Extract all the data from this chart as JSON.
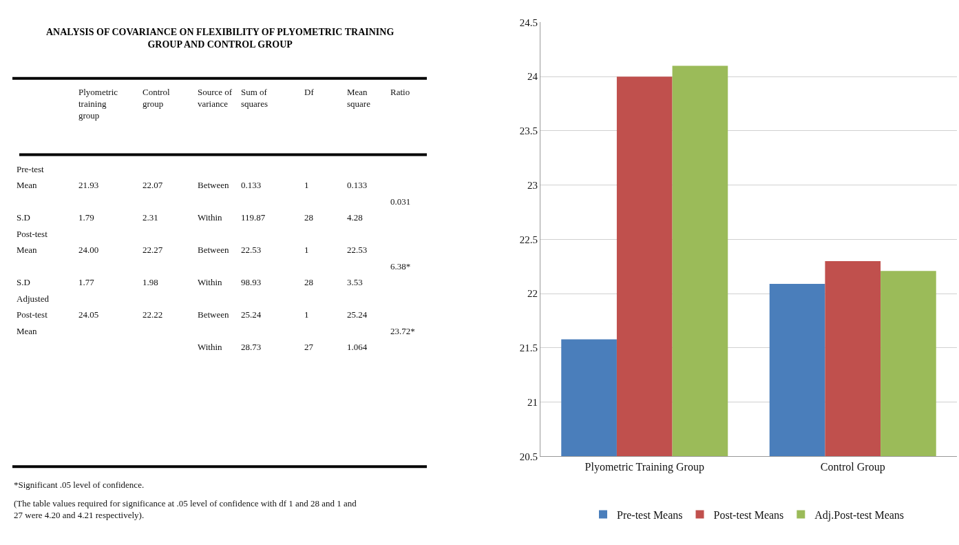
{
  "chart_data": [
    {
      "type": "other",
      "title": "ANALYSIS OF COVARIANCE ON FLEXIBILITY OF PLYOMETRIC TRAINING GROUP AND CONTROL GROUP",
      "categories": [
        null,
        "Plyometric training group",
        "Control group",
        "Source of variance",
        "Sum of squares",
        "Df",
        "Mean square",
        "Ratio"
      ],
      "cell_labels": [
        [
          "Pre-test",
          null,
          null,
          null,
          null,
          null,
          null,
          null
        ],
        [
          "Mean",
          "21.93",
          "22.07",
          "Between",
          "0.133",
          "1",
          "0.133",
          null
        ],
        [
          null,
          null,
          null,
          null,
          null,
          null,
          null,
          "0.031"
        ],
        [
          "S.D",
          "1.79",
          "2.31",
          "Within",
          "119.87",
          "28",
          "4.28",
          null
        ],
        [
          "Post-test",
          null,
          null,
          null,
          null,
          null,
          null,
          null
        ],
        [
          "Mean",
          "24.00",
          "22.27",
          "Between",
          "22.53",
          "1",
          "22.53",
          null
        ],
        [
          null,
          null,
          null,
          null,
          null,
          null,
          null,
          "6.38*"
        ],
        [
          "S.D",
          "1.77",
          "1.98",
          "Within",
          "98.93",
          "28",
          "3.53",
          null
        ],
        [
          "Adjusted",
          null,
          null,
          null,
          null,
          null,
          null,
          null
        ],
        [
          "Post-test",
          "24.05",
          "22.22",
          "Between",
          "25.24",
          "1",
          "25.24",
          null
        ],
        [
          "Mean",
          null,
          null,
          null,
          null,
          null,
          null,
          "23.72*"
        ],
        [
          null,
          null,
          null,
          "Within",
          "28.73",
          "27",
          "1.064",
          null
        ]
      ],
      "annotations": [
        "*Significant .05 level of confidence.",
        "(The table values required for significance at .05 level of confidence with df 1 and 28 and 1 and 27 were 4.20 and 4.21 respectively)."
      ]
    },
    {
      "type": "bar",
      "categories": [
        "Plyometric Training Group",
        "Control Group"
      ],
      "series": [
        {
          "name": "Pre-test Means",
          "color": "#4a7ebb",
          "values": [
            21.58,
            22.09
          ]
        },
        {
          "name": "Post-test Means",
          "color": "#c0504d",
          "values": [
            24.0,
            22.3
          ]
        },
        {
          "name": "Adj.Post-test Means",
          "color": "#9bbb59",
          "values": [
            24.1,
            22.21
          ]
        }
      ],
      "ylim": [
        20.5,
        24.5
      ],
      "yticks": [
        20.5,
        21,
        21.5,
        22,
        22.5,
        23,
        23.5,
        24,
        24.5
      ],
      "grid": "y",
      "legend": "bottom"
    }
  ]
}
